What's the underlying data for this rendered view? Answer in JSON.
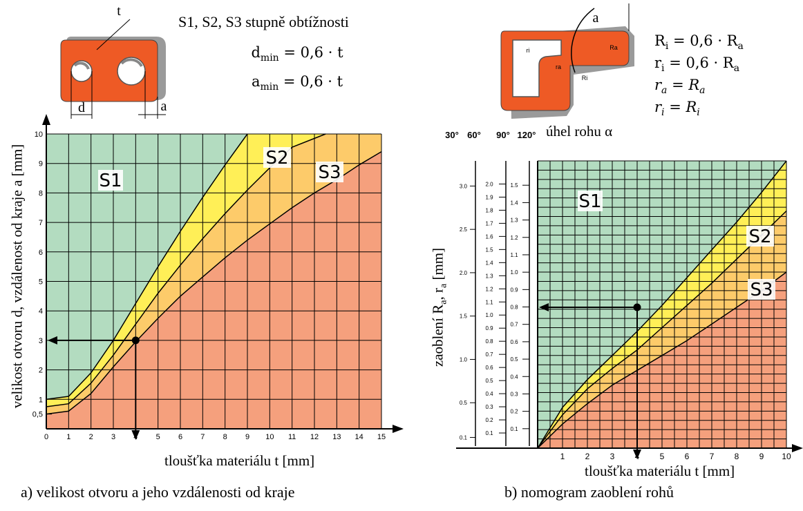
{
  "colors": {
    "s1": "#b3dcc0",
    "s2": "#ffef57",
    "s3": "#fdcb6a",
    "rest": "#f5a07d",
    "grid": "#000000",
    "part": "#ee5a25",
    "part_side": "#9a9a9a"
  },
  "header_a": {
    "difficulty": "S1, S2, S3 stupně obtížnosti",
    "dmin": "d_min = 0,6 · t",
    "amin": "a_min = 0,6 · t",
    "dmin_text": "dmin = 0,6 · t",
    "amin_text": "amin = 0,6 · t",
    "label_t": "t",
    "label_d": "d",
    "label_a": "a"
  },
  "header_b": {
    "f1": "Ri = 0,6 · Ra",
    "f2": "ri = 0,6 · Ra",
    "f3": "ra = Ra",
    "f4": "ri = Ri",
    "label_a": "a",
    "label_ri": "ri",
    "label_ra": "ra",
    "label_Ri": "Ri",
    "label_Ra": "Ra"
  },
  "chart_data": [
    {
      "id": "a",
      "type": "area",
      "title": "a) velikost otvoru a jeho vzdálenosti od kraje",
      "xlabel": "tloušťka materiálu t [mm]",
      "ylabel": "velikost otvoru d, vzdálenost od kraje a [mm]",
      "xlim": [
        0,
        15
      ],
      "ylim": [
        0,
        10
      ],
      "x_ticks": [
        "0",
        "1",
        "2",
        "3",
        "4",
        "5",
        "6",
        "7",
        "8",
        "9",
        "10",
        "11",
        "12",
        "13",
        "14",
        "15"
      ],
      "y_ticks": [
        "0,5",
        "1",
        "2",
        "3",
        "4",
        "5",
        "6",
        "7",
        "8",
        "9",
        "10"
      ],
      "grid": true,
      "region_labels": [
        "S1",
        "S2",
        "S3"
      ],
      "boundaries": [
        {
          "name": "S1/S2",
          "points": [
            [
              0,
              1.0
            ],
            [
              1,
              1.1
            ],
            [
              2,
              1.9
            ],
            [
              3,
              3.0
            ],
            [
              4,
              4.25
            ],
            [
              5,
              5.5
            ],
            [
              6,
              6.7
            ],
            [
              7,
              7.85
            ],
            [
              8,
              8.95
            ],
            [
              9,
              10.0
            ]
          ]
        },
        {
          "name": "S2/S3",
          "points": [
            [
              0,
              0.75
            ],
            [
              1,
              0.85
            ],
            [
              2,
              1.55
            ],
            [
              3,
              2.5
            ],
            [
              4,
              3.55
            ],
            [
              5,
              4.6
            ],
            [
              6,
              5.55
            ],
            [
              7,
              6.45
            ],
            [
              8,
              7.3
            ],
            [
              9,
              8.1
            ],
            [
              10,
              8.85
            ],
            [
              11,
              9.55
            ],
            [
              12.5,
              10.0
            ]
          ]
        },
        {
          "name": "S3/other",
          "points": [
            [
              0,
              0.5
            ],
            [
              1,
              0.6
            ],
            [
              2,
              1.2
            ],
            [
              3,
              2.1
            ],
            [
              4,
              2.95
            ],
            [
              5,
              3.75
            ],
            [
              6,
              4.5
            ],
            [
              7,
              5.15
            ],
            [
              8,
              5.8
            ],
            [
              9,
              6.4
            ],
            [
              10,
              6.95
            ],
            [
              11,
              7.5
            ],
            [
              12,
              8.0
            ],
            [
              13,
              8.45
            ],
            [
              14,
              8.95
            ],
            [
              15,
              9.4
            ]
          ]
        }
      ],
      "example": {
        "t": 4,
        "value": 3
      }
    },
    {
      "id": "b",
      "type": "area",
      "title": "b) nomogram zaoblení rohů",
      "xlabel": "tloušťka materiálu t [mm]",
      "ylabel": "zaoblení Ra, ra [mm]",
      "corner_angle_label": "úhel rohu α",
      "angle_headers": [
        "30°",
        "60°",
        "90°",
        "120°"
      ],
      "xlim": [
        0,
        10
      ],
      "ylim": [
        0,
        1.55
      ],
      "x_ticks": [
        "1",
        "2",
        "3",
        "4",
        "5",
        "6",
        "7",
        "8",
        "9",
        "10"
      ],
      "scale_30_60": [
        "0.1",
        "0.5",
        "1.0",
        "1.5",
        "2.0",
        "2.5",
        "3.0"
      ],
      "scale_60_90": [
        "0.1",
        "0.2",
        "0.3",
        "0.4",
        "0.5",
        "0.6",
        "0.7",
        "0.8",
        "0.9",
        "1.0",
        "1.1",
        "1.2",
        "1.3",
        "1.4",
        "1.5",
        "1.6",
        "1.7",
        "1.8",
        "1.9",
        "2.0"
      ],
      "scale_90_120": [
        "0.1",
        "0.2",
        "0.3",
        "0.4",
        "0.5",
        "0.6",
        "0.7",
        "0.8",
        "0.9",
        "1.0",
        "1.1",
        "1.2",
        "1.3",
        "1.4",
        "1.5"
      ],
      "grid": true,
      "region_labels": [
        "S1",
        "S2",
        "S3"
      ],
      "boundaries": [
        {
          "name": "S1/S2",
          "points": [
            [
              0,
              0
            ],
            [
              1,
              0.22
            ],
            [
              2,
              0.37
            ],
            [
              3,
              0.5
            ],
            [
              4,
              0.63
            ],
            [
              5,
              0.77
            ],
            [
              6,
              0.92
            ],
            [
              7,
              1.07
            ],
            [
              8,
              1.22
            ],
            [
              9,
              1.38
            ],
            [
              10,
              1.55
            ]
          ]
        },
        {
          "name": "S2/S3",
          "points": [
            [
              0,
              0
            ],
            [
              1,
              0.18
            ],
            [
              2,
              0.32
            ],
            [
              3,
              0.43
            ],
            [
              4,
              0.53
            ],
            [
              5,
              0.65
            ],
            [
              6,
              0.77
            ],
            [
              7,
              0.89
            ],
            [
              8,
              1.02
            ],
            [
              9,
              1.15
            ],
            [
              10,
              1.28
            ]
          ]
        },
        {
          "name": "S3/other",
          "points": [
            [
              0,
              0
            ],
            [
              1,
              0.13
            ],
            [
              2,
              0.24
            ],
            [
              3,
              0.34
            ],
            [
              4,
              0.42
            ],
            [
              5,
              0.5
            ],
            [
              6,
              0.58
            ],
            [
              7,
              0.67
            ],
            [
              8,
              0.76
            ],
            [
              9,
              0.85
            ],
            [
              10,
              0.95
            ]
          ]
        }
      ],
      "example": {
        "t": 4,
        "value": 0.76
      }
    }
  ]
}
